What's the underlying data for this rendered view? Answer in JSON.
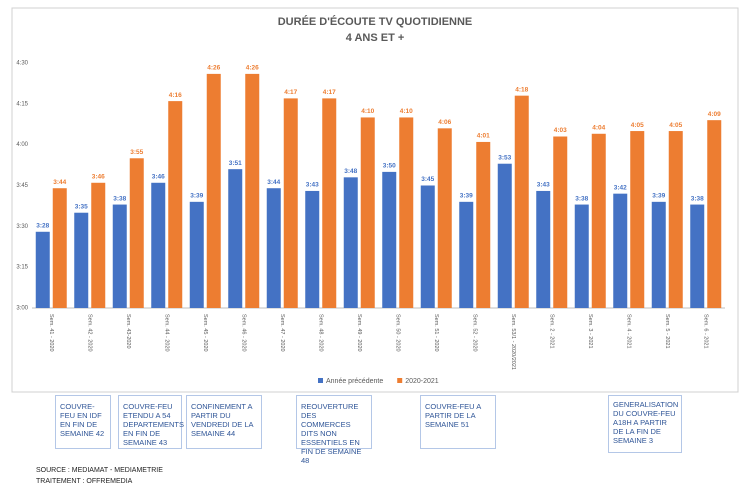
{
  "chart_data": {
    "type": "bar",
    "title": "DURÉE D'ÉCOUTE TV QUOTIDIENNE",
    "subtitle": "4 ANS ET +",
    "categories": [
      "Sem. 41 - 2020",
      "Sem. 42 - 2020",
      "Sem. 43-2020",
      "Sem. 44 - 2020",
      "Sem. 45 - 2020",
      "Sem. 46 - 2020",
      "Sem. 47 - 2020",
      "Sem. 48 - 2020",
      "Sem. 49 - 2020",
      "Sem. 50 - 2020",
      "Sem. 51 - 2020",
      "Sem. 52 - 2020",
      "Sem. 53/1 - 2020/2021",
      "Sem. 2 - 2021",
      "Sem. 3 - 2021",
      "Sem. 4 - 2021",
      "Sem. 5 - 2021",
      "Sem. 6 - 2021"
    ],
    "series": [
      {
        "name": "Année précédente",
        "color": "#4472c4",
        "values": [
          208,
          215,
          218,
          226,
          219,
          231,
          224,
          223,
          228,
          230,
          225,
          219,
          233,
          223,
          218,
          222,
          219,
          218
        ],
        "value_labels": [
          "3:28",
          "3:35",
          "3:38",
          "3:46",
          "3:39",
          "3:51",
          "3:44",
          "3:43",
          "3:48",
          "3:50",
          "3:45",
          "3:39",
          "3:53",
          "3:43",
          "3:38",
          "3:42",
          "3:39",
          "3:38"
        ]
      },
      {
        "name": "2020-2021",
        "color": "#ed7d31",
        "values": [
          224,
          226,
          235,
          256,
          266,
          266,
          257,
          257,
          250,
          250,
          246,
          241,
          258,
          243,
          244,
          245,
          245,
          249
        ],
        "value_labels": [
          "3:44",
          "3:46",
          "3:55",
          "4:16",
          "4:26",
          "4:26",
          "4:17",
          "4:17",
          "4:10",
          "4:10",
          "4:06",
          "4:01",
          "4:18",
          "4:03",
          "4:04",
          "4:05",
          "4:05",
          "4:09"
        ]
      }
    ],
    "ylim": [
      180,
      270
    ],
    "yticks": [
      {
        "value": 180,
        "label": "3:00"
      },
      {
        "value": 195,
        "label": "3:15"
      },
      {
        "value": 210,
        "label": "3:30"
      },
      {
        "value": 225,
        "label": "3:45"
      },
      {
        "value": 240,
        "label": "4:00"
      },
      {
        "value": 255,
        "label": "4:15"
      },
      {
        "value": 270,
        "label": "4:30"
      }
    ],
    "grid": false,
    "annotations": [
      "COUVRE-FEU EN IDF EN FIN DE SEMAINE 42",
      "COUVRE-FEU ETENDU A 54 DEPARTEMENTS EN FIN DE SEMAINE 43",
      "CONFINEMENT A PARTIR DU VENDREDI DE LA SEMAINE 44",
      "REOUVERTURE DES COMMERCES DITS NON ESSENTIELS EN FIN DE SEMAINE 48",
      "COUVRE-FEU A PARTIR DE LA SEMAINE 51",
      "GENERALISATION DU COUVRE-FEU A18H A PARTIR DE LA FIN DE SEMAINE 3"
    ],
    "source": "SOURCE  : MEDIAMAT - MEDIAMETRIE",
    "processing": "TRAITEMENT : OFFREMEDIA"
  }
}
